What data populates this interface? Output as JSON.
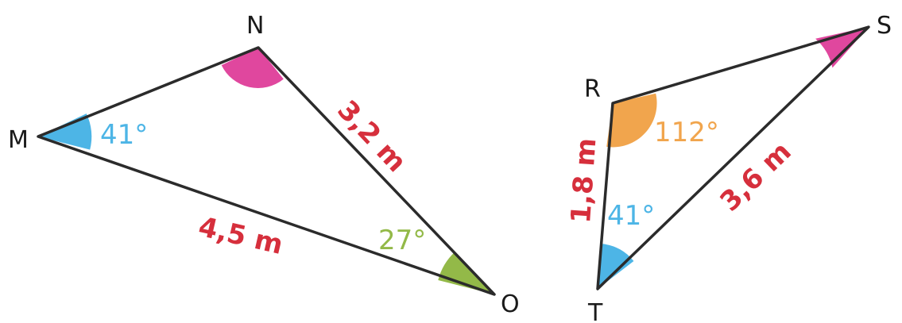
{
  "colors": {
    "line": "#2b2b2b",
    "side_label": "#d62f3c",
    "angle_blue": "#4db5e6",
    "angle_pink": "#e0479e",
    "angle_green": "#93b948",
    "angle_orange": "#f1a54d",
    "vertex_label": "#1a1a1a"
  },
  "triangle_MNO": {
    "vertices": {
      "M": "M",
      "N": "N",
      "O": "O"
    },
    "sides": {
      "MO": "4,5 m",
      "NO": "3,2 m"
    },
    "angles": {
      "M": "41°",
      "O": "27°"
    }
  },
  "triangle_RST": {
    "vertices": {
      "R": "R",
      "S": "S",
      "T": "T"
    },
    "sides": {
      "RT": "1,8 m",
      "ST": "3,6 m"
    },
    "angles": {
      "R": "112°",
      "T": "41°"
    }
  }
}
